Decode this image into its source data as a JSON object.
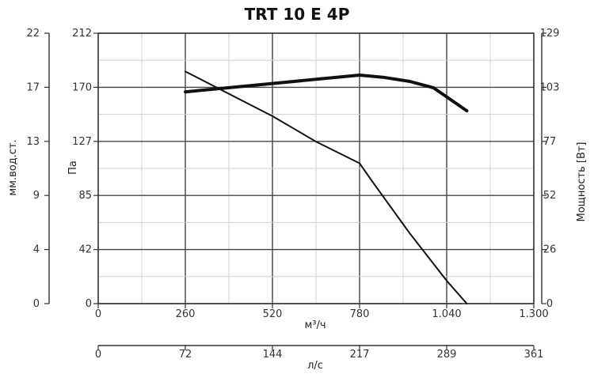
{
  "chart_data": {
    "type": "line",
    "title": "TRT 10 E 4P",
    "x_label_flow_m3h": "м³/ч",
    "x_label_flow_ls": "л/с",
    "y_label_pressure_pa": "Па",
    "y_label_pressure_mm": "мм.вод.ст.",
    "y_label_power": "Мощность [Вт]",
    "x_ticks_m3h": [
      "0",
      "260",
      "520",
      "780",
      "1.040",
      "1.300"
    ],
    "x_ticks_ls": [
      "0",
      "72",
      "144",
      "217",
      "289",
      "361"
    ],
    "y_ticks_pa": [
      "0",
      "42",
      "85",
      "127",
      "170",
      "212"
    ],
    "y_ticks_mm": [
      "0",
      "4",
      "9",
      "13",
      "17",
      "22"
    ],
    "y_ticks_power": [
      "0",
      "26",
      "52",
      "77",
      "103",
      "129"
    ],
    "xlim": [
      0,
      1300
    ],
    "ylim_pa": [
      0,
      212
    ],
    "ylim_power": [
      0,
      129
    ],
    "grid": true,
    "series": [
      {
        "axis": "pressure",
        "color": "#111111",
        "points": [
          [
            260,
            182
          ],
          [
            520,
            147
          ],
          [
            650,
            127
          ],
          [
            780,
            110
          ],
          [
            820,
            95
          ],
          [
            930,
            55
          ],
          [
            1040,
            18
          ],
          [
            1100,
            0
          ]
        ]
      },
      {
        "axis": "power",
        "color": "#111111",
        "points": [
          [
            260,
            101
          ],
          [
            520,
            105
          ],
          [
            650,
            107
          ],
          [
            780,
            109
          ],
          [
            850,
            108
          ],
          [
            930,
            106
          ],
          [
            1000,
            103
          ],
          [
            1100,
            92
          ]
        ]
      }
    ]
  }
}
